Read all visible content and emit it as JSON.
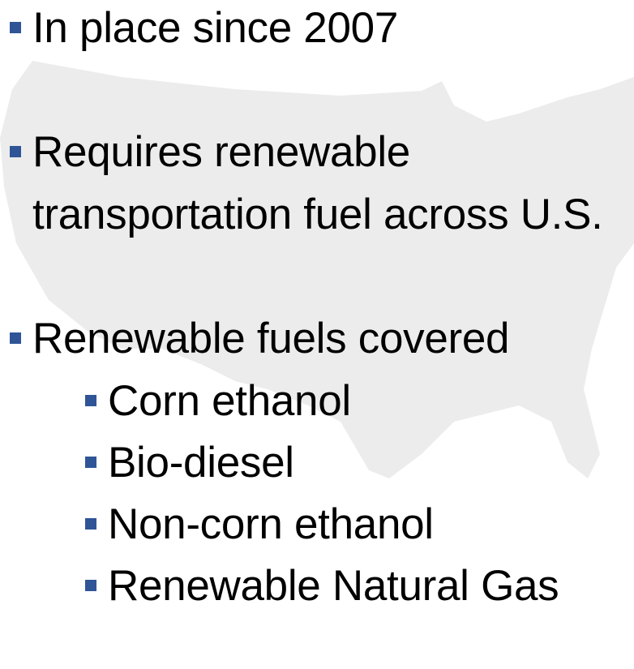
{
  "bullets": [
    {
      "text": "In place since 2007"
    },
    {
      "text": "Requires renewable transportation fuel across U.S."
    },
    {
      "text": "Renewable fuels covered",
      "items": [
        "Corn ethanol",
        "Bio-diesel",
        "Non-corn ethanol",
        "Renewable Natural Gas"
      ]
    }
  ]
}
